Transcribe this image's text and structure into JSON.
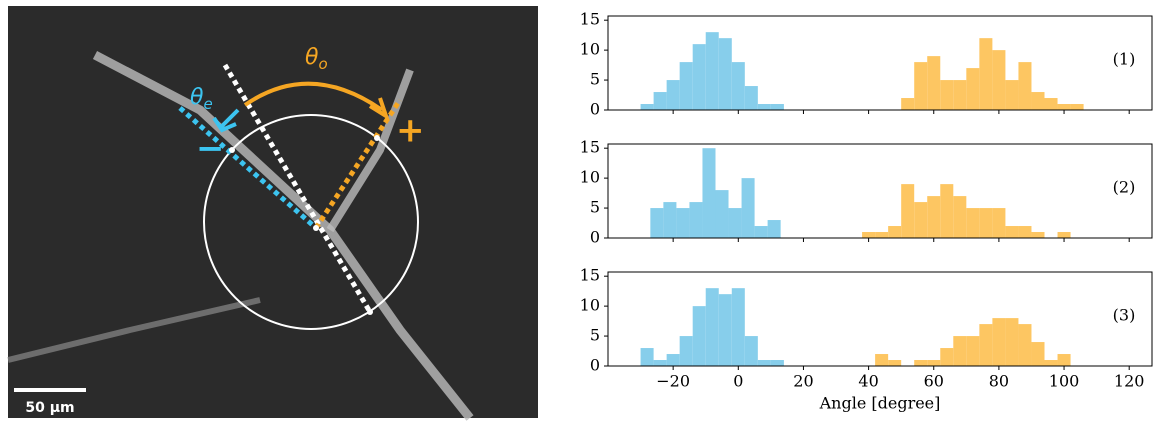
{
  "image": {
    "theta_e": {
      "symbol": "θ",
      "subscript": "e"
    },
    "theta_o": {
      "symbol": "θ",
      "subscript": "o"
    },
    "minus": "−",
    "plus": "+",
    "scale_bar": "50 µm"
  },
  "chart_data": [
    {
      "type": "histogram",
      "label": "(1)",
      "xlim": [
        -40,
        127
      ],
      "ylim": [
        0,
        15.7
      ],
      "yticks": [
        0,
        5,
        10,
        15
      ],
      "xticks": [
        {
          "value": -20,
          "label": "−20"
        },
        0,
        20,
        40,
        60,
        80,
        100,
        120
      ],
      "series": [
        {
          "color": "#87ceeb",
          "bins": [
            -30,
            -26,
            -22,
            -18,
            -14,
            -10,
            -6,
            -2,
            2,
            6,
            10,
            14
          ],
          "values": [
            1,
            3,
            5,
            8,
            11,
            13,
            12,
            8,
            4,
            1,
            1
          ]
        },
        {
          "color": "#fdc662",
          "bins": [
            50,
            54,
            58,
            62,
            66,
            70,
            74,
            78,
            82,
            86,
            90,
            94,
            98,
            102,
            106
          ],
          "values": [
            2,
            8,
            9,
            5,
            5,
            7,
            12,
            10,
            5,
            8,
            3,
            2,
            1,
            1
          ]
        }
      ]
    },
    {
      "type": "histogram",
      "label": "(2)",
      "xlim": [
        -40,
        127
      ],
      "ylim": [
        0,
        15.7
      ],
      "yticks": [
        0,
        5,
        10,
        15
      ],
      "xticks": [
        {
          "value": -20,
          "label": "−20"
        },
        0,
        20,
        40,
        60,
        80,
        100,
        120
      ],
      "series": [
        {
          "color": "#87ceeb",
          "bins": [
            -27,
            -23,
            -19,
            -15,
            -11,
            -7,
            -3,
            1,
            5,
            9,
            13
          ],
          "values": [
            5,
            6,
            5,
            6,
            15,
            8,
            5,
            10,
            2,
            3
          ]
        },
        {
          "color": "#fdc662",
          "bins": [
            38,
            42,
            46,
            50,
            54,
            58,
            62,
            66,
            70,
            74,
            78,
            82,
            86,
            90,
            94,
            98,
            102
          ],
          "values": [
            1,
            1,
            2,
            9,
            6,
            7,
            9,
            7,
            5,
            5,
            5,
            2,
            2,
            1,
            0,
            1
          ]
        }
      ]
    },
    {
      "type": "histogram",
      "label": "(3)",
      "xlabel": "Angle [degree]",
      "xlim": [
        -40,
        127
      ],
      "ylim": [
        0,
        15.7
      ],
      "yticks": [
        0,
        5,
        10,
        15
      ],
      "xticks": [
        {
          "value": -20,
          "label": "−20"
        },
        0,
        20,
        40,
        60,
        80,
        100,
        120
      ],
      "series": [
        {
          "color": "#87ceeb",
          "bins": [
            -30,
            -26,
            -22,
            -18,
            -14,
            -10,
            -6,
            -2,
            2,
            6,
            10,
            14,
            18
          ],
          "values": [
            3,
            1,
            2,
            5,
            10,
            13,
            12,
            13,
            5,
            1,
            1,
            0,
            1
          ]
        },
        {
          "color": "#fdc662",
          "bins": [
            42,
            46,
            50,
            54,
            58,
            62,
            66,
            70,
            74,
            78,
            82,
            86,
            90,
            94,
            98,
            102
          ],
          "values": [
            2,
            1,
            0,
            1,
            1,
            3,
            5,
            5,
            7,
            8,
            8,
            7,
            4,
            1,
            2
          ]
        }
      ]
    }
  ]
}
